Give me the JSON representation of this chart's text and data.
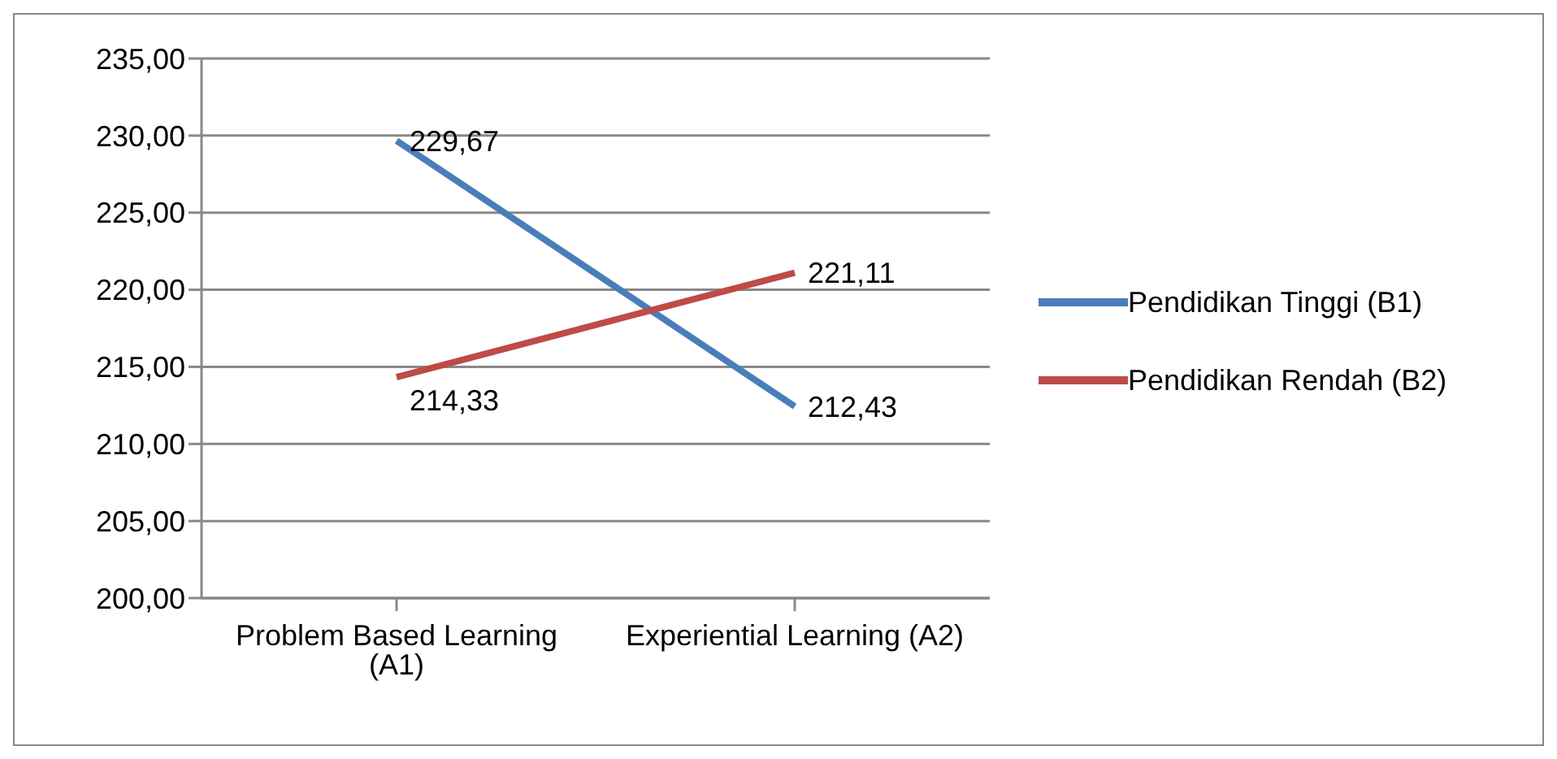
{
  "chart_data": {
    "type": "line",
    "categories": [
      "Problem Based Learning (A1)",
      "Experiential Learning (A2)"
    ],
    "series": [
      {
        "name": "Pendidikan Tinggi (B1)",
        "color": "#4a7ebb",
        "values": [
          229.67,
          212.43
        ],
        "value_labels": [
          "229,67",
          "212,43"
        ]
      },
      {
        "name": "Pendidikan Rendah (B2)",
        "color": "#be4b48",
        "values": [
          214.33,
          221.11
        ],
        "value_labels": [
          "214,33",
          "221,11"
        ]
      }
    ],
    "ylim": [
      200,
      235
    ],
    "yticks": [
      {
        "value": 200,
        "label": "200,00"
      },
      {
        "value": 205,
        "label": "205,00"
      },
      {
        "value": 210,
        "label": "210,00"
      },
      {
        "value": 215,
        "label": "215,00"
      },
      {
        "value": 220,
        "label": "220,00"
      },
      {
        "value": 225,
        "label": "225,00"
      },
      {
        "value": 230,
        "label": "230,00"
      },
      {
        "value": 235,
        "label": "235,00"
      }
    ],
    "grid": "y",
    "legend": "right",
    "marker": "none",
    "line_style": "solid"
  }
}
